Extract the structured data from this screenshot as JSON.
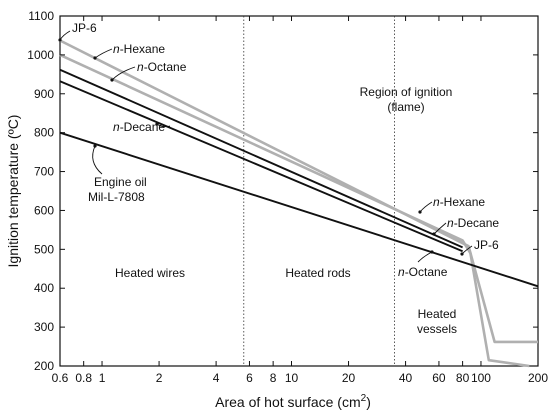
{
  "chart_data": {
    "type": "line",
    "title": "",
    "xlabel": "Area of hot surface (cm",
    "xlabel_sup": "2",
    "xlabel_close": ")",
    "ylabel": "Ignition temperature (ºC)",
    "x_scale": "log",
    "xlim": [
      0.6,
      200
    ],
    "ylim": [
      200,
      1100
    ],
    "x_ticks": [
      0.6,
      0.8,
      1,
      2,
      4,
      6,
      8,
      10,
      20,
      40,
      60,
      80,
      100,
      200
    ],
    "x_tick_labels": [
      "0.6",
      "0.8",
      "1",
      "2",
      "4",
      "6",
      "8",
      "10",
      "20",
      "40",
      "60",
      "80",
      "100",
      "200"
    ],
    "y_ticks": [
      200,
      300,
      400,
      500,
      600,
      700,
      800,
      900,
      1000,
      1100
    ],
    "y_tick_labels": [
      "200",
      "300",
      "400",
      "500",
      "600",
      "700",
      "800",
      "900",
      "1000",
      "1100"
    ],
    "grid": false,
    "series": [
      {
        "name": "JP-6",
        "color": "#b0b0b0",
        "x": [
          0.6,
          86,
          118,
          200
        ],
        "y": [
          1037,
          508,
          262,
          262
        ]
      },
      {
        "name": "n-Hexane",
        "color": "#b0b0b0",
        "x": [
          0.6,
          80,
          88,
          110,
          180
        ],
        "y": [
          1000,
          523,
          490,
          215,
          200
        ]
      },
      {
        "name": "n-Octane",
        "color": "#111111",
        "x": [
          0.6,
          80
        ],
        "y": [
          962,
          505
        ]
      },
      {
        "name": "n-Decane",
        "color": "#111111",
        "x": [
          0.6,
          80
        ],
        "y": [
          932,
          495
        ]
      },
      {
        "name": "Engine oil Mil-L-7808",
        "color": "#111111",
        "x": [
          0.6,
          200
        ],
        "y": [
          800,
          405
        ]
      }
    ],
    "dividers": [
      {
        "x": 5.6,
        "label": "Heated rods"
      },
      {
        "x": 35,
        "label": "Heated vessels"
      }
    ],
    "annotations": {
      "left_labels": [
        {
          "italic": "",
          "text": "JP-6"
        },
        {
          "italic": "n",
          "text": "-Hexane"
        },
        {
          "italic": "n",
          "text": "-Octane"
        },
        {
          "italic": "n",
          "text": "-Decane"
        }
      ],
      "engine_oil": [
        "Engine oil",
        "Mil-L-7808"
      ],
      "right_labels": [
        {
          "italic": "n",
          "text": "-Hexane"
        },
        {
          "italic": "n",
          "text": "-Decane"
        },
        {
          "italic": "",
          "text": "JP-6"
        },
        {
          "italic": "n",
          "text": "-Octane"
        }
      ],
      "region_ignition": [
        "Region of ignition",
        "(flame)"
      ],
      "heated_wires": "Heated wires",
      "heated_rods": "Heated rods",
      "heated_vessels": [
        "Heated",
        "vessels"
      ]
    }
  }
}
